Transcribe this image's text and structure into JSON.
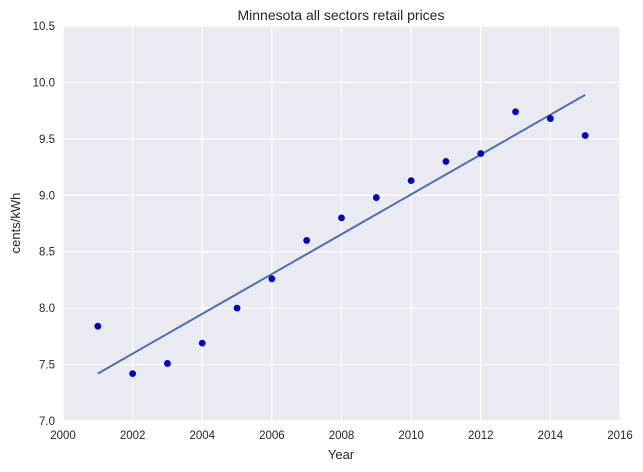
{
  "chart_data": {
    "type": "scatter",
    "title": "Minnesota   all sectors retail prices",
    "xlabel": "Year",
    "ylabel": "cents/kWh",
    "xlim": [
      2000,
      2016
    ],
    "ylim": [
      7.0,
      10.5
    ],
    "xticks": [
      2000,
      2002,
      2004,
      2006,
      2008,
      2010,
      2012,
      2014,
      2016
    ],
    "yticks": [
      "7.0",
      "7.5",
      "8.0",
      "8.5",
      "9.0",
      "9.5",
      "10.0",
      "10.5"
    ],
    "grid": true,
    "legend": "none",
    "series": [
      {
        "kind": "scatter",
        "color": "#0000cc",
        "x": [
          2001,
          2002,
          2003,
          2004,
          2005,
          2006,
          2007,
          2008,
          2009,
          2010,
          2011,
          2012,
          2013,
          2014,
          2015
        ],
        "y": [
          7.84,
          7.42,
          7.51,
          7.69,
          8.0,
          8.26,
          8.6,
          8.8,
          8.98,
          9.13,
          9.3,
          9.37,
          9.74,
          9.68,
          9.53
        ]
      },
      {
        "kind": "line",
        "color": "#4c72b0",
        "x": [
          2001,
          2015
        ],
        "y": [
          7.42,
          9.89
        ]
      }
    ],
    "colors": {
      "background": "#eaeaf2",
      "grid": "#ffffff",
      "text": "#262626"
    }
  }
}
